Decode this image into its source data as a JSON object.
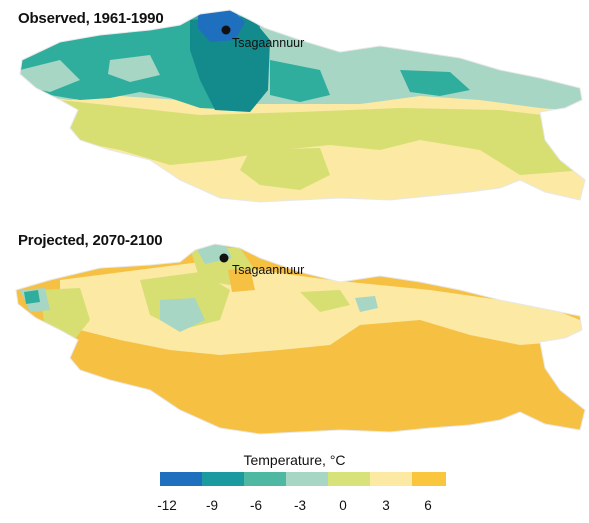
{
  "maps": [
    {
      "title": "Observed, 1961-1990",
      "city_label": "Tsagaannuur"
    },
    {
      "title": "Projected, 2070-2100",
      "city_label": "Tsagaannuur"
    }
  ],
  "legend": {
    "title": "Temperature, °C",
    "ticks": [
      "-12",
      "-9",
      "-6",
      "-3",
      "0",
      "3",
      "6"
    ],
    "colors": [
      "#1f6fbf",
      "#1b9aa0",
      "#4fb8a2",
      "#a7d6c4",
      "#d8e27a",
      "#fbe9a4",
      "#f9c63e"
    ]
  },
  "colors": {
    "very_cold": "#1f6fbf",
    "cold": "#138a8c",
    "teal": "#2fae9e",
    "mint": "#a7d6c4",
    "green_yellow": "#d7df72",
    "pale_yellow": "#fbe9a4",
    "orange_yellow": "#f6c043"
  }
}
